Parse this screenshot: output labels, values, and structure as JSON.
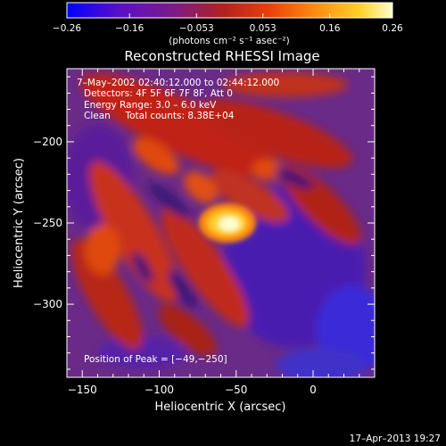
{
  "chart_data": {
    "type": "heatmap",
    "title": "Reconstructed RHESSI Image",
    "xlabel": "Heliocentric X (arcsec)",
    "ylabel": "Heliocentric Y (arcsec)",
    "xlim": [
      -160,
      40
    ],
    "ylim": [
      -345,
      -155
    ],
    "x_ticks": [
      -150,
      -100,
      -50,
      0
    ],
    "x_tick_labels": [
      "−150",
      "−100",
      "−50",
      "0"
    ],
    "y_ticks": [
      -200,
      -250,
      -300
    ],
    "y_tick_labels": [
      "−200",
      "−250",
      "−300"
    ],
    "colorbar": {
      "range": [
        -0.26,
        0.26
      ],
      "ticks": [
        -0.26,
        -0.16,
        -0.053,
        0.053,
        0.16,
        0.26
      ],
      "tick_labels": [
        "−0.26",
        "−0.16",
        "−0.053",
        "0.053",
        "0.16",
        "0.26"
      ],
      "label": "(photons cm⁻² s⁻¹ asec⁻²)",
      "colors": [
        "#0000ff",
        "#5a0fc8",
        "#7a1a8c",
        "#b32020",
        "#e8400a",
        "#ff8a10",
        "#ffd02a",
        "#ffffcc"
      ]
    },
    "peak": {
      "x": -49,
      "y": -250
    },
    "annotations": {
      "time_range": "7–May–2002 02:40:12.000 to 02:44:12.000",
      "detectors": "Detectors: 4F 5F 6F 7F 8F, Att 0",
      "energy": "Energy Range: 3.0 – 6.0 keV",
      "clean": "Clean     Total counts: 8.38E+04",
      "peak_position": "Position of Peak = [−49,−250]"
    },
    "footer_date": "17–Apr–2013 19:27"
  }
}
